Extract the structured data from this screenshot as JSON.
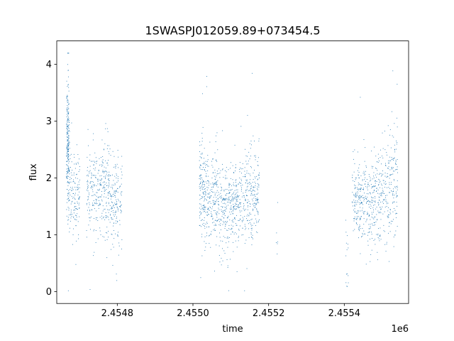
{
  "chart_data": {
    "type": "scatter",
    "title": "1SWASPJ012059.89+073454.5",
    "xlabel": "time",
    "ylabel": "flux",
    "x_offset_label": "1e6",
    "xlim": [
      2454640,
      2455570
    ],
    "ylim": [
      -0.21,
      4.41
    ],
    "x_ticks": [
      2454800,
      2455000,
      2455200,
      2455400
    ],
    "x_tick_labels": [
      "2.4548",
      "2.4550",
      "2.4552",
      "2.4554"
    ],
    "y_ticks": [
      0,
      1,
      2,
      3,
      4
    ],
    "y_tick_labels": [
      "0",
      "1",
      "2",
      "3",
      "4"
    ],
    "grid": false,
    "legend": "none",
    "point_color": "#1f77b4",
    "observing_blocks": [
      {
        "x_start": 2454665,
        "x_end": 2454672,
        "y_center": 2.6,
        "y_spread": 0.55,
        "density": 230
      },
      {
        "x_start": 2454672,
        "x_end": 2454700,
        "y_center": 1.75,
        "y_spread": 0.38,
        "density": 140
      },
      {
        "x_start": 2454718,
        "x_end": 2454752,
        "y_center": 1.75,
        "y_spread": 0.37,
        "density": 150
      },
      {
        "x_start": 2454752,
        "x_end": 2454778,
        "y_center": 1.8,
        "y_spread": 0.42,
        "density": 150
      },
      {
        "x_start": 2454778,
        "x_end": 2454812,
        "y_center": 1.55,
        "y_spread": 0.4,
        "density": 160
      },
      {
        "x_start": 2455016,
        "x_end": 2455030,
        "y_center": 1.8,
        "y_spread": 0.48,
        "density": 120
      },
      {
        "x_start": 2455030,
        "x_end": 2455062,
        "y_center": 1.65,
        "y_spread": 0.4,
        "density": 190
      },
      {
        "x_start": 2455062,
        "x_end": 2455100,
        "y_center": 1.5,
        "y_spread": 0.4,
        "density": 200
      },
      {
        "x_start": 2455100,
        "x_end": 2455140,
        "y_center": 1.55,
        "y_spread": 0.38,
        "density": 210
      },
      {
        "x_start": 2455140,
        "x_end": 2455175,
        "y_center": 1.7,
        "y_spread": 0.38,
        "density": 190
      },
      {
        "x_start": 2455218,
        "x_end": 2455224,
        "y_center": 0.8,
        "y_spread": 0.2,
        "density": 6
      },
      {
        "x_start": 2455403,
        "x_end": 2455410,
        "y_center": 0.55,
        "y_spread": 0.3,
        "density": 15
      },
      {
        "x_start": 2455420,
        "x_end": 2455450,
        "y_center": 1.6,
        "y_spread": 0.35,
        "density": 160
      },
      {
        "x_start": 2455450,
        "x_end": 2455480,
        "y_center": 1.55,
        "y_spread": 0.38,
        "density": 150
      },
      {
        "x_start": 2455480,
        "x_end": 2455515,
        "y_center": 1.75,
        "y_spread": 0.42,
        "density": 160
      },
      {
        "x_start": 2455515,
        "x_end": 2455540,
        "y_center": 2.0,
        "y_spread": 0.5,
        "density": 130
      }
    ]
  }
}
